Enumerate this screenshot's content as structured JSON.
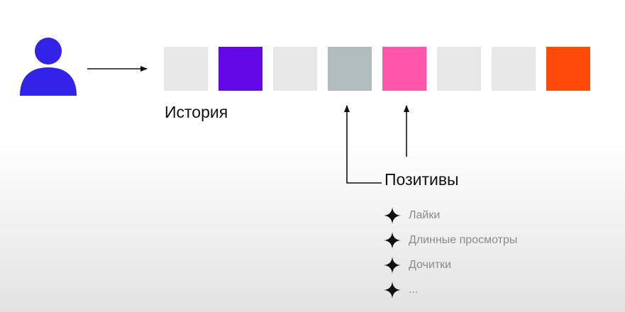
{
  "history": {
    "label": "История",
    "items": [
      {
        "color": "#e8e8e8"
      },
      {
        "color": "#6208e6"
      },
      {
        "color": "#e8e8e8"
      },
      {
        "color": "#b1bcbd"
      },
      {
        "color": "#ff55aa"
      },
      {
        "color": "#e8e8e8"
      },
      {
        "color": "#e8e8e8"
      },
      {
        "color": "#ff4a0a"
      }
    ]
  },
  "positives": {
    "label": "Позитивы",
    "items": [
      {
        "label": "Лайки"
      },
      {
        "label": "Длинные просмотры"
      },
      {
        "label": "Дочитки"
      },
      {
        "label": "..."
      }
    ]
  },
  "colors": {
    "user": "#3322e8",
    "arrow": "#111111",
    "bullet_star": "#111111",
    "bullet_text": "#8a8a8a"
  },
  "icons": {
    "user": "user-icon",
    "bullet": "star-icon"
  }
}
